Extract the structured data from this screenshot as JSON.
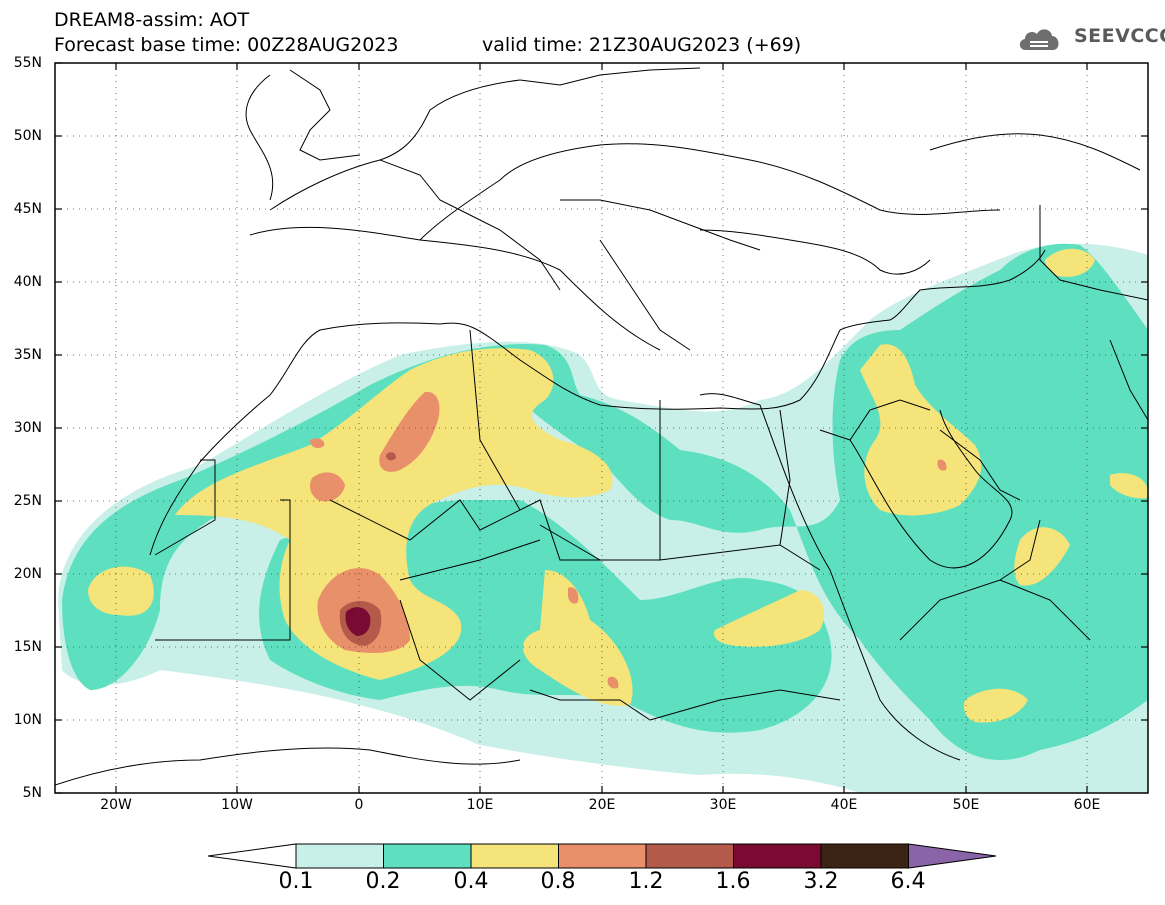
{
  "header": {
    "title_line1": "DREAM8-assim: AOT",
    "title_line2": "Forecast base time: 00Z28AUG2023",
    "valid_time": "valid time: 21Z30AUG2023 (+69)",
    "logo_text": "SEEVCCC",
    "logo_icon": "cloud-icon"
  },
  "map": {
    "projection": "lat-lon",
    "lon_range": [
      -25,
      65
    ],
    "lat_range": [
      5,
      55
    ],
    "lat_labels": [
      "55N",
      "50N",
      "45N",
      "40N",
      "35N",
      "30N",
      "25N",
      "20N",
      "15N",
      "10N",
      "5N"
    ],
    "lon_labels": [
      "20W",
      "10W",
      "0",
      "10E",
      "20E",
      "30E",
      "40E",
      "50E",
      "60E"
    ],
    "gridlines": "dotted"
  },
  "legend": {
    "labels": [
      "0.1",
      "0.2",
      "0.4",
      "0.8",
      "1.2",
      "1.6",
      "3.2",
      "6.4"
    ],
    "colors": [
      "#ffffff",
      "#c8f0e8",
      "#5ee0c0",
      "#f5e47a",
      "#e8906a",
      "#b45a4a",
      "#7a0a32",
      "#3c2414",
      "#8a64a8"
    ]
  }
}
